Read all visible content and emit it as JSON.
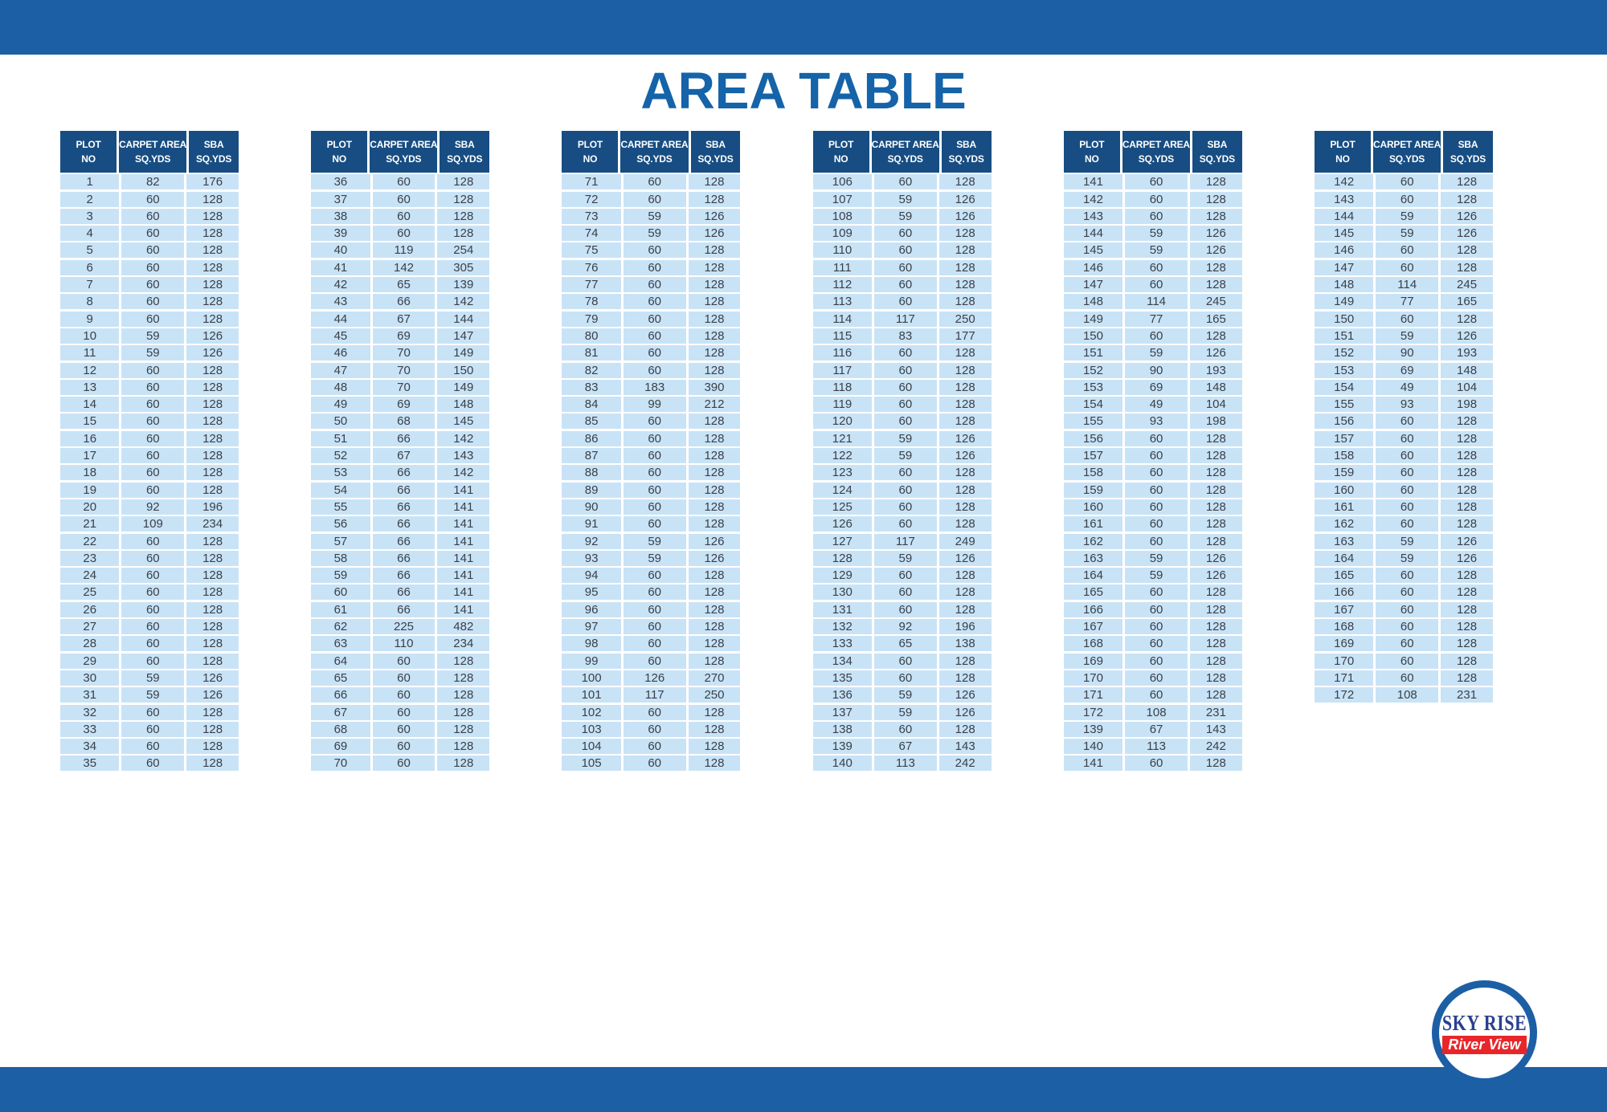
{
  "page": {
    "title": "AREA TABLE"
  },
  "colors": {
    "bar_blue": "#1c5fa5",
    "header_navy": "#174d82",
    "row_blue": "#c9e3f6",
    "title_blue": "#1563a8",
    "cell_text": "#394049",
    "logo_blue": "#2b3f90",
    "logo_red": "#e8262a"
  },
  "table_header": {
    "plot_line1": "PLOT",
    "plot_line2": "NO",
    "carpet_line1": "CARPET AREA",
    "carpet_line2": "SQ.YDS",
    "sba_line1": "SBA",
    "sba_line2": "SQ.YDS"
  },
  "logo": {
    "line1": "SKY RISE",
    "line2": "River View"
  },
  "tables": [
    {
      "rows": [
        [
          1,
          82,
          176
        ],
        [
          2,
          60,
          128
        ],
        [
          3,
          60,
          128
        ],
        [
          4,
          60,
          128
        ],
        [
          5,
          60,
          128
        ],
        [
          6,
          60,
          128
        ],
        [
          7,
          60,
          128
        ],
        [
          8,
          60,
          128
        ],
        [
          9,
          60,
          128
        ],
        [
          10,
          59,
          126
        ],
        [
          11,
          59,
          126
        ],
        [
          12,
          60,
          128
        ],
        [
          13,
          60,
          128
        ],
        [
          14,
          60,
          128
        ],
        [
          15,
          60,
          128
        ],
        [
          16,
          60,
          128
        ],
        [
          17,
          60,
          128
        ],
        [
          18,
          60,
          128
        ],
        [
          19,
          60,
          128
        ],
        [
          20,
          92,
          196
        ],
        [
          21,
          109,
          234
        ],
        [
          22,
          60,
          128
        ],
        [
          23,
          60,
          128
        ],
        [
          24,
          60,
          128
        ],
        [
          25,
          60,
          128
        ],
        [
          26,
          60,
          128
        ],
        [
          27,
          60,
          128
        ],
        [
          28,
          60,
          128
        ],
        [
          29,
          60,
          128
        ],
        [
          30,
          59,
          126
        ],
        [
          31,
          59,
          126
        ],
        [
          32,
          60,
          128
        ],
        [
          33,
          60,
          128
        ],
        [
          34,
          60,
          128
        ],
        [
          35,
          60,
          128
        ]
      ]
    },
    {
      "rows": [
        [
          36,
          60,
          128
        ],
        [
          37,
          60,
          128
        ],
        [
          38,
          60,
          128
        ],
        [
          39,
          60,
          128
        ],
        [
          40,
          119,
          254
        ],
        [
          41,
          142,
          305
        ],
        [
          42,
          65,
          139
        ],
        [
          43,
          66,
          142
        ],
        [
          44,
          67,
          144
        ],
        [
          45,
          69,
          147
        ],
        [
          46,
          70,
          149
        ],
        [
          47,
          70,
          150
        ],
        [
          48,
          70,
          149
        ],
        [
          49,
          69,
          148
        ],
        [
          50,
          68,
          145
        ],
        [
          51,
          66,
          142
        ],
        [
          52,
          67,
          143
        ],
        [
          53,
          66,
          142
        ],
        [
          54,
          66,
          141
        ],
        [
          55,
          66,
          141
        ],
        [
          56,
          66,
          141
        ],
        [
          57,
          66,
          141
        ],
        [
          58,
          66,
          141
        ],
        [
          59,
          66,
          141
        ],
        [
          60,
          66,
          141
        ],
        [
          61,
          66,
          141
        ],
        [
          62,
          225,
          482
        ],
        [
          63,
          110,
          234
        ],
        [
          64,
          60,
          128
        ],
        [
          65,
          60,
          128
        ],
        [
          66,
          60,
          128
        ],
        [
          67,
          60,
          128
        ],
        [
          68,
          60,
          128
        ],
        [
          69,
          60,
          128
        ],
        [
          70,
          60,
          128
        ]
      ]
    },
    {
      "rows": [
        [
          71,
          60,
          128
        ],
        [
          72,
          60,
          128
        ],
        [
          73,
          59,
          126
        ],
        [
          74,
          59,
          126
        ],
        [
          75,
          60,
          128
        ],
        [
          76,
          60,
          128
        ],
        [
          77,
          60,
          128
        ],
        [
          78,
          60,
          128
        ],
        [
          79,
          60,
          128
        ],
        [
          80,
          60,
          128
        ],
        [
          81,
          60,
          128
        ],
        [
          82,
          60,
          128
        ],
        [
          83,
          183,
          390
        ],
        [
          84,
          99,
          212
        ],
        [
          85,
          60,
          128
        ],
        [
          86,
          60,
          128
        ],
        [
          87,
          60,
          128
        ],
        [
          88,
          60,
          128
        ],
        [
          89,
          60,
          128
        ],
        [
          90,
          60,
          128
        ],
        [
          91,
          60,
          128
        ],
        [
          92,
          59,
          126
        ],
        [
          93,
          59,
          126
        ],
        [
          94,
          60,
          128
        ],
        [
          95,
          60,
          128
        ],
        [
          96,
          60,
          128
        ],
        [
          97,
          60,
          128
        ],
        [
          98,
          60,
          128
        ],
        [
          99,
          60,
          128
        ],
        [
          100,
          126,
          270
        ],
        [
          101,
          117,
          250
        ],
        [
          102,
          60,
          128
        ],
        [
          103,
          60,
          128
        ],
        [
          104,
          60,
          128
        ],
        [
          105,
          60,
          128
        ]
      ]
    },
    {
      "rows": [
        [
          106,
          60,
          128
        ],
        [
          107,
          59,
          126
        ],
        [
          108,
          59,
          126
        ],
        [
          109,
          60,
          128
        ],
        [
          110,
          60,
          128
        ],
        [
          111,
          60,
          128
        ],
        [
          112,
          60,
          128
        ],
        [
          113,
          60,
          128
        ],
        [
          114,
          117,
          250
        ],
        [
          115,
          83,
          177
        ],
        [
          116,
          60,
          128
        ],
        [
          117,
          60,
          128
        ],
        [
          118,
          60,
          128
        ],
        [
          119,
          60,
          128
        ],
        [
          120,
          60,
          128
        ],
        [
          121,
          59,
          126
        ],
        [
          122,
          59,
          126
        ],
        [
          123,
          60,
          128
        ],
        [
          124,
          60,
          128
        ],
        [
          125,
          60,
          128
        ],
        [
          126,
          60,
          128
        ],
        [
          127,
          117,
          249
        ],
        [
          128,
          59,
          126
        ],
        [
          129,
          60,
          128
        ],
        [
          130,
          60,
          128
        ],
        [
          131,
          60,
          128
        ],
        [
          132,
          92,
          196
        ],
        [
          133,
          65,
          138
        ],
        [
          134,
          60,
          128
        ],
        [
          135,
          60,
          128
        ],
        [
          136,
          59,
          126
        ],
        [
          137,
          59,
          126
        ],
        [
          138,
          60,
          128
        ],
        [
          139,
          67,
          143
        ],
        [
          140,
          113,
          242
        ]
      ]
    },
    {
      "rows": [
        [
          141,
          60,
          128
        ],
        [
          142,
          60,
          128
        ],
        [
          143,
          60,
          128
        ],
        [
          144,
          59,
          126
        ],
        [
          145,
          59,
          126
        ],
        [
          146,
          60,
          128
        ],
        [
          147,
          60,
          128
        ],
        [
          148,
          114,
          245
        ],
        [
          149,
          77,
          165
        ],
        [
          150,
          60,
          128
        ],
        [
          151,
          59,
          126
        ],
        [
          152,
          90,
          193
        ],
        [
          153,
          69,
          148
        ],
        [
          154,
          49,
          104
        ],
        [
          155,
          93,
          198
        ],
        [
          156,
          60,
          128
        ],
        [
          157,
          60,
          128
        ],
        [
          158,
          60,
          128
        ],
        [
          159,
          60,
          128
        ],
        [
          160,
          60,
          128
        ],
        [
          161,
          60,
          128
        ],
        [
          162,
          60,
          128
        ],
        [
          163,
          59,
          126
        ],
        [
          164,
          59,
          126
        ],
        [
          165,
          60,
          128
        ],
        [
          166,
          60,
          128
        ],
        [
          167,
          60,
          128
        ],
        [
          168,
          60,
          128
        ],
        [
          169,
          60,
          128
        ],
        [
          170,
          60,
          128
        ],
        [
          171,
          60,
          128
        ],
        [
          172,
          108,
          231
        ],
        [
          139,
          67,
          143
        ],
        [
          140,
          113,
          242
        ],
        [
          141,
          60,
          128
        ]
      ]
    },
    {
      "rows": [
        [
          142,
          60,
          128
        ],
        [
          143,
          60,
          128
        ],
        [
          144,
          59,
          126
        ],
        [
          145,
          59,
          126
        ],
        [
          146,
          60,
          128
        ],
        [
          147,
          60,
          128
        ],
        [
          148,
          114,
          245
        ],
        [
          149,
          77,
          165
        ],
        [
          150,
          60,
          128
        ],
        [
          151,
          59,
          126
        ],
        [
          152,
          90,
          193
        ],
        [
          153,
          69,
          148
        ],
        [
          154,
          49,
          104
        ],
        [
          155,
          93,
          198
        ],
        [
          156,
          60,
          128
        ],
        [
          157,
          60,
          128
        ],
        [
          158,
          60,
          128
        ],
        [
          159,
          60,
          128
        ],
        [
          160,
          60,
          128
        ],
        [
          161,
          60,
          128
        ],
        [
          162,
          60,
          128
        ],
        [
          163,
          59,
          126
        ],
        [
          164,
          59,
          126
        ],
        [
          165,
          60,
          128
        ],
        [
          166,
          60,
          128
        ],
        [
          167,
          60,
          128
        ],
        [
          168,
          60,
          128
        ],
        [
          169,
          60,
          128
        ],
        [
          170,
          60,
          128
        ],
        [
          171,
          60,
          128
        ],
        [
          172,
          108,
          231
        ]
      ]
    }
  ]
}
